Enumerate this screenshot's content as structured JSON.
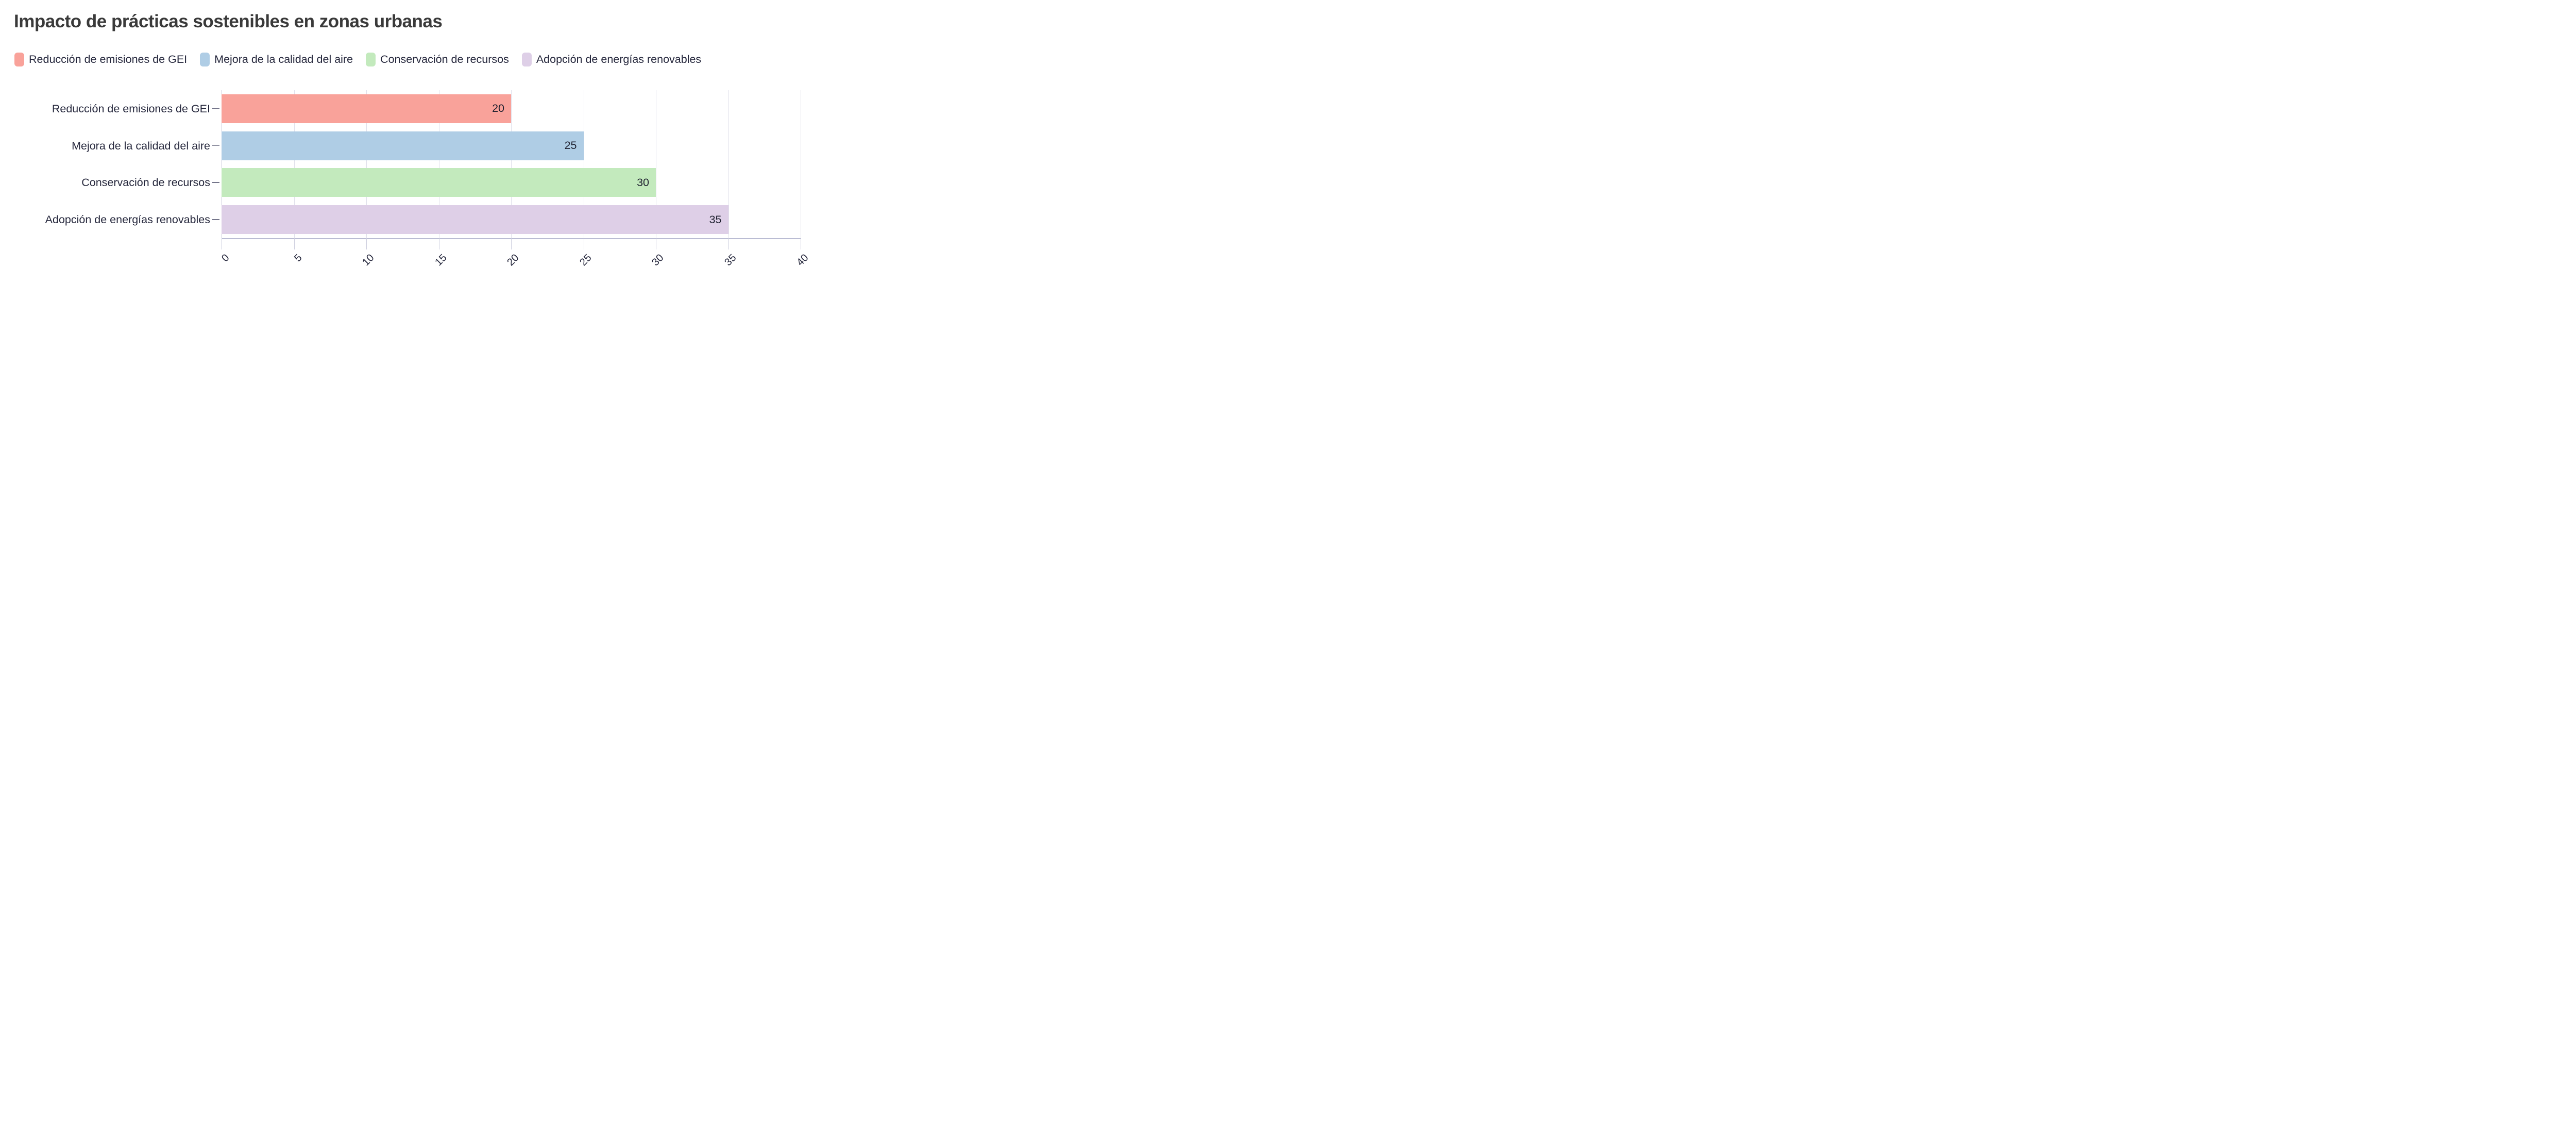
{
  "title": "Impacto de prácticas sostenibles en zonas urbanas",
  "chart_data": {
    "type": "bar",
    "orientation": "horizontal",
    "title": "Impacto de prácticas sostenibles en zonas urbanas",
    "categories": [
      "Reducción de emisiones de GEI",
      "Mejora de la calidad del aire",
      "Conservación de recursos",
      "Adopción de energías renovables"
    ],
    "values": [
      20,
      25,
      30,
      35
    ],
    "value_labels": [
      "20",
      "25",
      "30",
      "35"
    ],
    "bar_colors": [
      "#F9A29A",
      "#AFCDE5",
      "#C3EABD",
      "#DECFE7"
    ],
    "legend_entries": [
      "Reducción de emisiones de GEI",
      "Mejora de la calidad del aire",
      "Conservación de recursos",
      "Adopción de energías renovables"
    ],
    "legend_position": "top",
    "xlabel": "",
    "ylabel": "",
    "xlim": [
      0,
      40
    ],
    "xticks": [
      0,
      5,
      10,
      15,
      20,
      25,
      30,
      35,
      40
    ],
    "xtick_rotation": -45,
    "grid": true,
    "grid_color": "#dfdfea",
    "axis_line_color": "#a9abc8",
    "text_color": "#25273c",
    "title_color": "#3a3a3a",
    "background_color": "#ffffff"
  }
}
